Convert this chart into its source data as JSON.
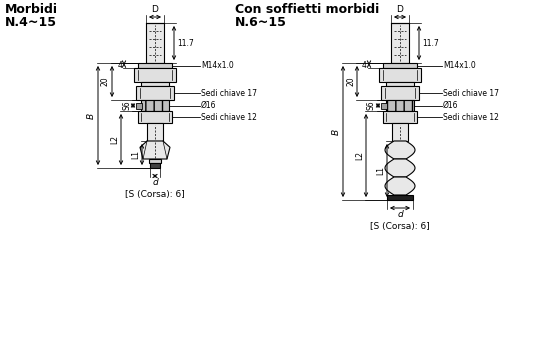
{
  "title1": "Morbidi",
  "subtitle1": "N.4~15",
  "title2": "Con soffietti morbidi",
  "subtitle2": "N.6~15",
  "label_D": "D",
  "label_11_7": "11.7",
  "label_M14": "M14x1.0",
  "label_4": "4",
  "label_20": "20",
  "label_B": "B",
  "label_sedi17": "Sedi chiave 17",
  "label_S6": "S6",
  "label_phi16": "Ø16",
  "label_sedi12": "Sedi chiave 12",
  "label_L2": "L2",
  "label_L1": "L1",
  "label_d": "d",
  "label_corsa": "[S (Corsa): 6]",
  "bg_color": "#ffffff",
  "line_color": "#000000"
}
